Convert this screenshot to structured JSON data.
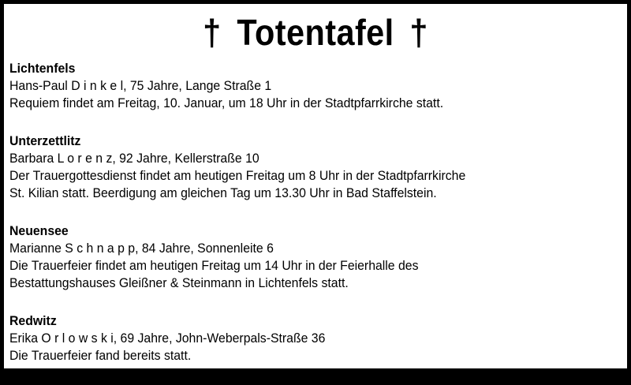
{
  "title": {
    "cross": "†",
    "text": "Totentafel"
  },
  "entries": [
    {
      "place": "Lichtenfels",
      "name_line": "Hans-Paul D i n k e l, 75 Jahre, Lange Straße 1",
      "text_lines": [
        "Requiem findet am Freitag, 10. Januar, um 18 Uhr in der Stadtpfarrkirche statt."
      ]
    },
    {
      "place": "Unterzettlitz",
      "name_line": "Barbara L o r e n z, 92 Jahre, Kellerstraße 10",
      "text_lines": [
        "Der Trauergottesdienst findet am heutigen Freitag um 8 Uhr in der Stadtpfarrkirche",
        "St. Kilian statt. Beerdigung am gleichen Tag um 13.30 Uhr in Bad Staffelstein."
      ]
    },
    {
      "place": "Neuensee",
      "name_line": "Marianne S c h n a p p, 84 Jahre, Sonnenleite 6",
      "text_lines": [
        "Die Trauerfeier findet am heutigen Freitag um 14 Uhr in der Feierhalle des",
        "Bestattungshauses Gleißner & Steinmann in Lichtenfels statt."
      ]
    },
    {
      "place": "Redwitz",
      "name_line": "Erika O r l o w s k i, 69 Jahre, John-Weberpals-Straße 36",
      "text_lines": [
        "Die Trauerfeier fand bereits statt."
      ]
    }
  ]
}
